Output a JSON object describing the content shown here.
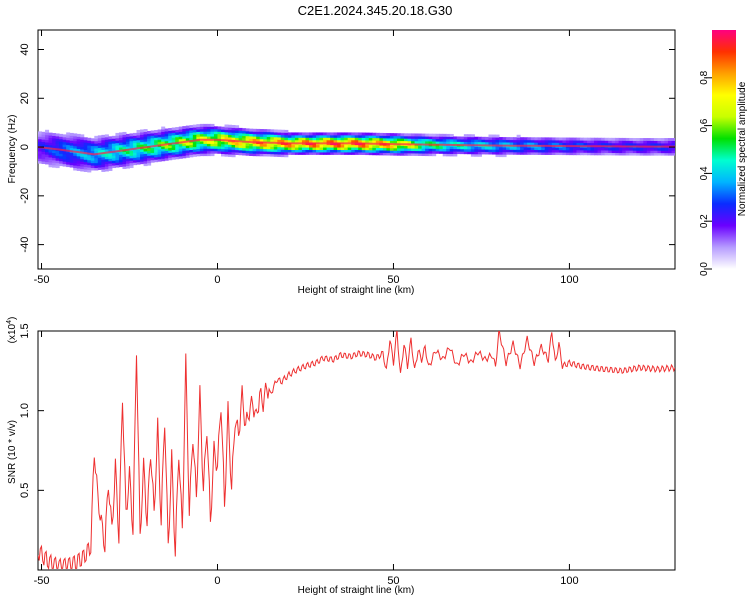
{
  "page_title": "C2E1.2024.345.20.18.G30",
  "spectrogram": {
    "ylabel": "Frequency (Hz)",
    "xlabel": "Height of straight line (km)",
    "x_ticks": [
      "-50",
      "0",
      "50",
      "100"
    ],
    "x_tick_values": [
      -50,
      0,
      50,
      100
    ],
    "y_ticks": [
      "40",
      "20",
      "0",
      "-20",
      "-40"
    ],
    "y_tick_values": [
      40,
      20,
      0,
      -20,
      -40
    ],
    "xlim": [
      -51,
      130
    ],
    "ylim": [
      -50,
      48
    ],
    "colorbar": {
      "label": "Normalized spectral amplitude",
      "ticks": [
        "0.0",
        "0.2",
        "0.4",
        "0.6",
        "0.8"
      ],
      "tick_values": [
        0.0,
        0.2,
        0.4,
        0.6,
        0.8
      ],
      "range": [
        0,
        1
      ],
      "colors": [
        "#ffffff",
        "#b69cff",
        "#6a00ff",
        "#0a2cff",
        "#00b4ff",
        "#00ffd0",
        "#00e000",
        "#c8ff00",
        "#ffff00",
        "#ffa000",
        "#ff3000",
        "#ff0080"
      ]
    }
  },
  "snr": {
    "ylabel": "SNR (10 * v/v)",
    "xlabel": "Height of straight line (km)",
    "scale_label": "(x10",
    "scale_exponent": "4",
    "scale_close": ")",
    "x_ticks": [
      "-50",
      "0",
      "50",
      "100"
    ],
    "x_tick_values": [
      -50,
      0,
      50,
      100
    ],
    "y_ticks": [
      "1.5",
      "1.0",
      "0.5"
    ],
    "y_tick_values": [
      1.5,
      1.0,
      0.5
    ],
    "line_color": "#ee3030"
  },
  "chart_data": [
    {
      "type": "heatmap",
      "title": "C2E1.2024.345.20.18.G30",
      "xlabel": "Height of straight line (km)",
      "ylabel": "Frequency (Hz)",
      "xlim": [
        -51,
        130
      ],
      "ylim": [
        -50,
        48
      ],
      "colorbar_label": "Normalized spectral amplitude",
      "colorbar_range": [
        0,
        1
      ],
      "ridge": {
        "x": [
          -51,
          -45,
          -40,
          -35,
          -30,
          -25,
          -20,
          -15,
          -10,
          -5,
          0,
          5,
          10,
          15,
          20,
          30,
          40,
          50,
          60,
          70,
          80,
          90,
          100,
          110,
          120,
          130
        ],
        "frequency": [
          0,
          -1,
          -2,
          -3,
          -2,
          -1,
          0,
          1,
          2,
          3,
          3,
          2.5,
          2,
          1.8,
          1.5,
          1.5,
          1.5,
          1.2,
          1.0,
          0.8,
          0.6,
          0.5,
          0.4,
          0.3,
          0.2,
          0.2
        ],
        "amplitude": [
          0.25,
          0.35,
          0.4,
          0.45,
          0.5,
          0.55,
          0.6,
          0.65,
          0.7,
          0.75,
          0.8,
          0.85,
          0.9,
          0.92,
          0.95,
          1.0,
          1.0,
          0.9,
          0.6,
          0.5,
          0.45,
          0.4,
          0.35,
          0.3,
          0.3,
          0.3
        ]
      }
    },
    {
      "type": "line",
      "xlabel": "Height of straight line (km)",
      "ylabel": "SNR (10 * v/v)",
      "y_multiplier": 10000,
      "xlim": [
        -51,
        130
      ],
      "ylim": [
        0,
        1.5
      ],
      "series": [
        {
          "x": [
            -51,
            -48,
            -45,
            -42,
            -40,
            -38,
            -36,
            -35,
            -34,
            -33,
            -32,
            -31,
            -30,
            -29,
            -28,
            -27,
            -26,
            -25,
            -24,
            -23,
            -22,
            -21,
            -20,
            -19,
            -18,
            -17,
            -16,
            -15,
            -14,
            -13,
            -12,
            -11,
            -10,
            -9,
            -8,
            -7,
            -6,
            -5,
            -4,
            -3,
            -2,
            -1,
            0,
            1,
            2,
            3,
            4,
            5,
            6,
            7,
            8,
            9,
            10,
            11,
            12,
            13,
            14,
            15,
            16,
            17,
            18,
            20,
            22,
            25,
            28,
            30,
            33,
            35,
            38,
            40,
            43,
            45,
            47,
            48,
            49,
            50,
            51,
            52,
            53,
            54,
            55,
            56,
            57,
            58,
            59,
            60,
            62,
            64,
            66,
            68,
            70,
            72,
            74,
            76,
            78,
            79,
            80,
            82,
            84,
            86,
            88,
            90,
            92,
            94,
            95,
            96,
            97,
            98,
            100,
            103,
            106,
            110,
            115,
            120,
            125,
            130
          ],
          "y": [
            0.12,
            0.05,
            0.02,
            0.03,
            0.05,
            0.08,
            0.15,
            0.75,
            0.45,
            0.3,
            0.15,
            0.55,
            0.25,
            0.65,
            0.2,
            1.1,
            0.35,
            0.6,
            0.25,
            1.4,
            0.2,
            0.65,
            0.3,
            0.75,
            0.35,
            0.9,
            0.3,
            0.95,
            0.15,
            0.7,
            0.1,
            0.75,
            0.25,
            1.3,
            0.35,
            0.85,
            0.45,
            1.1,
            0.5,
            0.9,
            0.3,
            0.75,
            0.65,
            1.05,
            0.4,
            1.0,
            0.5,
            0.95,
            0.85,
            1.1,
            0.9,
            1.0,
            1.05,
            0.95,
            1.1,
            1.05,
            1.15,
            1.1,
            1.15,
            1.2,
            1.18,
            1.22,
            1.25,
            1.28,
            1.3,
            1.33,
            1.32,
            1.35,
            1.34,
            1.36,
            1.35,
            1.33,
            1.36,
            1.25,
            1.45,
            1.3,
            1.5,
            1.22,
            1.42,
            1.28,
            1.45,
            1.25,
            1.38,
            1.32,
            1.4,
            1.27,
            1.38,
            1.32,
            1.4,
            1.28,
            1.36,
            1.3,
            1.37,
            1.32,
            1.35,
            1.28,
            1.5,
            1.3,
            1.42,
            1.28,
            1.45,
            1.3,
            1.4,
            1.32,
            1.5,
            1.3,
            1.42,
            1.28,
            1.3,
            1.28,
            1.27,
            1.26,
            1.25,
            1.27,
            1.26,
            1.27
          ]
        }
      ]
    }
  ]
}
